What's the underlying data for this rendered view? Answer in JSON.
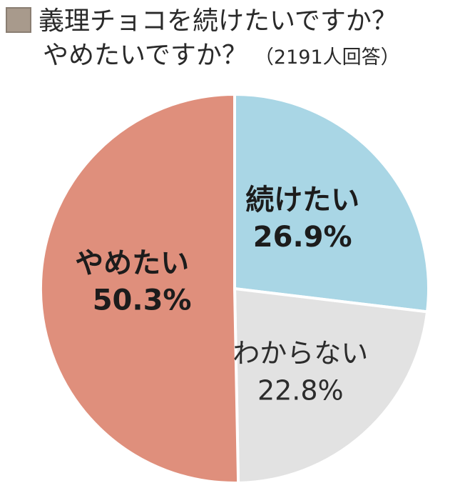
{
  "chart_data": {
    "type": "pie",
    "title_line1": "義理チョコを続けたいですか？",
    "title_line2": "やめたいですか？",
    "respondents_note": "（2191人回答）",
    "slices": [
      {
        "label": "続けたい",
        "value": 26.9,
        "value_label": "26.9%",
        "color": "#a9d6e5",
        "text_color": "#1c1c1c",
        "bold": true
      },
      {
        "label": "わからない",
        "value": 22.8,
        "value_label": "22.8%",
        "color": "#e2e2e2",
        "text_color": "#2c2c2c",
        "bold": false
      },
      {
        "label": "やめたい",
        "value": 50.3,
        "value_label": "50.3%",
        "color": "#df8f7c",
        "text_color": "#1c1c1c",
        "bold": true
      }
    ],
    "legend_color": "#a89a8c",
    "start": "12 o'clock",
    "direction": "clockwise"
  }
}
